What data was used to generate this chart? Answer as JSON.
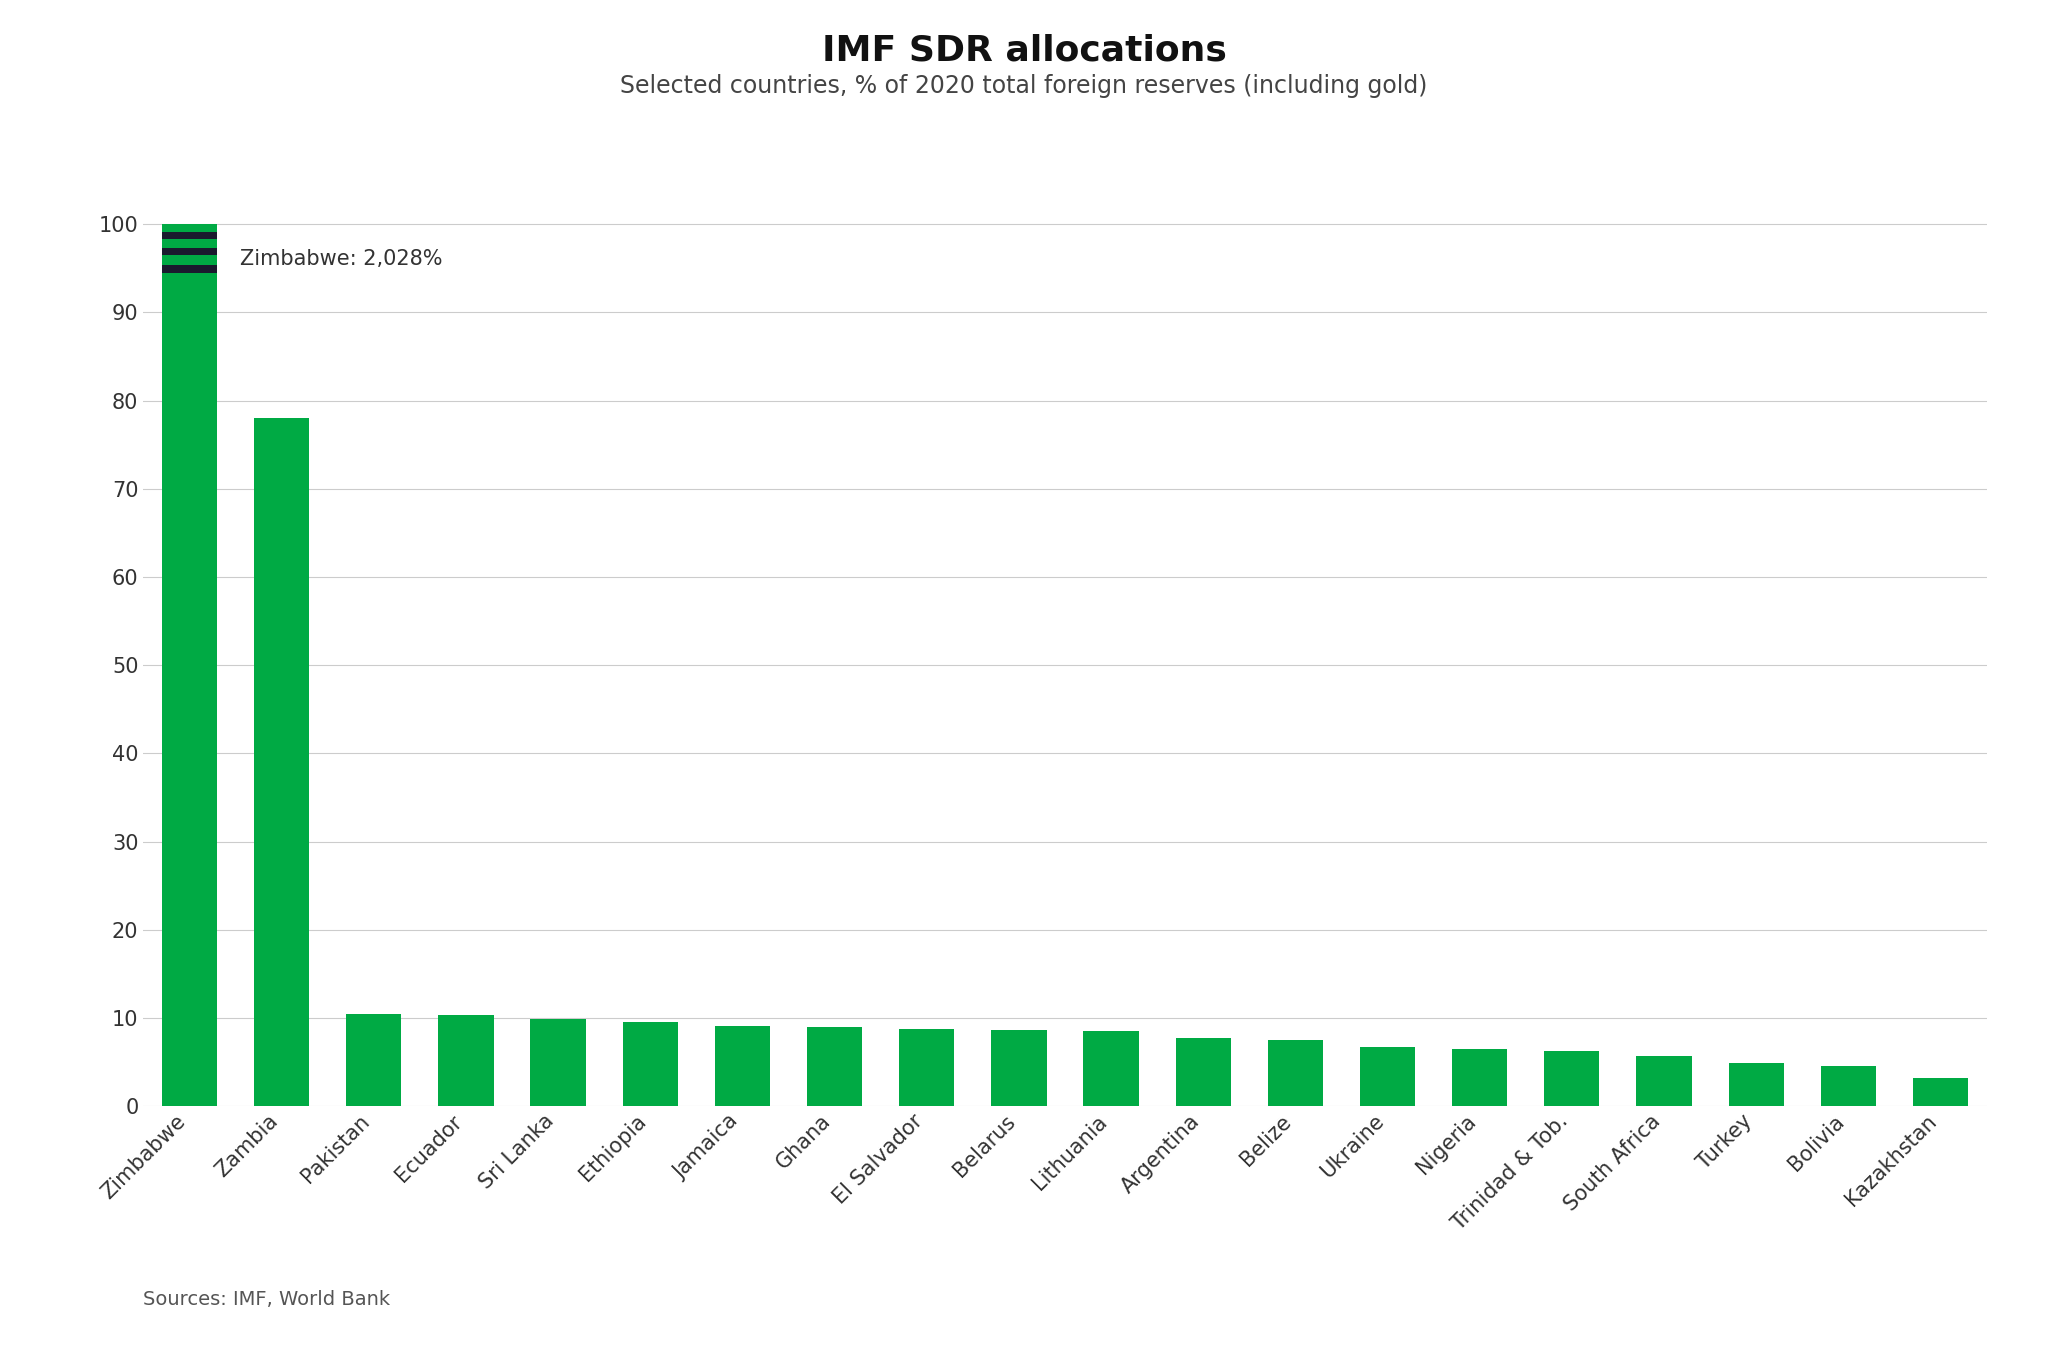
{
  "title": "IMF SDR allocations",
  "subtitle": "Selected countries, % of 2020 total foreign reserves (including gold)",
  "source": "Sources: IMF, World Bank",
  "annotation": "Zimbabwe: 2,028%",
  "categories": [
    "Zimbabwe",
    "Zambia",
    "Pakistan",
    "Ecuador",
    "Sri Lanka",
    "Ethiopia",
    "Jamaica",
    "Ghana",
    "El Salvador",
    "Belarus",
    "Lithuania",
    "Argentina",
    "Belize",
    "Ukraine",
    "Nigeria",
    "Trinidad & Tob.",
    "South Africa",
    "Turkey",
    "Bolivia",
    "Kazakhstan"
  ],
  "values": [
    100,
    78,
    10.4,
    10.3,
    9.9,
    9.5,
    9.1,
    9.0,
    8.7,
    8.6,
    8.5,
    7.7,
    7.5,
    6.7,
    6.5,
    6.2,
    5.7,
    4.9,
    4.5,
    3.2
  ],
  "bar_color": "#00aa44",
  "truncation_color": "#1a1a2e",
  "ylim": [
    0,
    104
  ],
  "yticks": [
    0,
    10,
    20,
    30,
    40,
    50,
    60,
    70,
    80,
    90,
    100
  ],
  "background_color": "#ffffff",
  "grid_color": "#cccccc",
  "title_fontsize": 26,
  "subtitle_fontsize": 17,
  "tick_fontsize": 15,
  "source_fontsize": 14,
  "annotation_fontsize": 15
}
